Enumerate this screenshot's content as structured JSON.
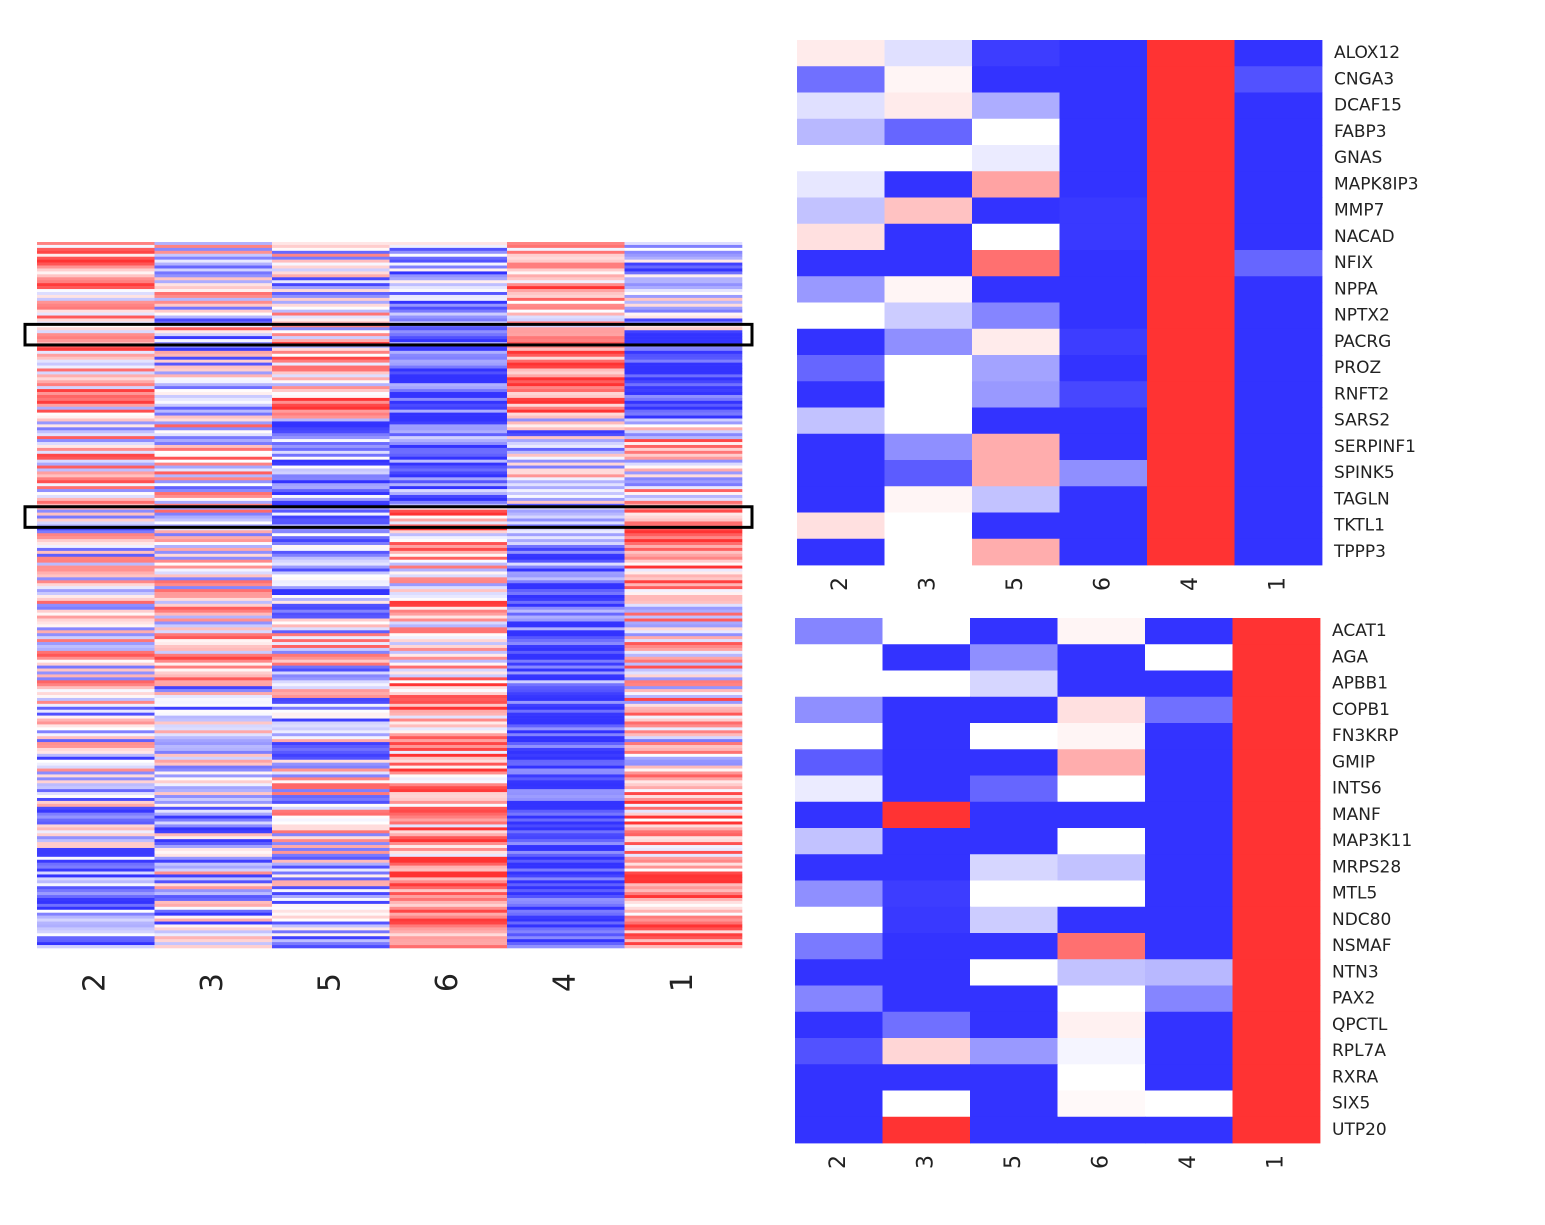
{
  "palette": {
    "high": "#ff3333",
    "low": "#3333ff",
    "mid": "#ffffff",
    "box": "#000000"
  },
  "chart_data": [
    {
      "id": "overview",
      "type": "heatmap",
      "title": "",
      "columns": [
        "2",
        "3",
        "5",
        "6",
        "4",
        "1"
      ],
      "value_range": [
        -1,
        1
      ],
      "row_count": 240,
      "highlight_rows": [
        [
          28,
          35
        ],
        [
          90,
          97
        ]
      ],
      "blocks": [
        {
          "rows": [
            0,
            30
          ],
          "means": [
            0.4,
            -0.05,
            -0.1,
            -0.5,
            0.35,
            -0.4
          ]
        },
        {
          "rows": [
            30,
            60
          ],
          "means": [
            0.2,
            -0.25,
            0.3,
            -0.85,
            0.7,
            -0.95
          ]
        },
        {
          "rows": [
            60,
            90
          ],
          "means": [
            0.15,
            0.05,
            -0.55,
            -0.7,
            -0.2,
            0.15
          ]
        },
        {
          "rows": [
            90,
            120
          ],
          "means": [
            -0.1,
            0.15,
            -0.55,
            0.25,
            -0.65,
            0.4
          ]
        },
        {
          "rows": [
            120,
            150
          ],
          "means": [
            0.1,
            0.2,
            -0.05,
            0.35,
            -0.75,
            0.2
          ]
        },
        {
          "rows": [
            150,
            180
          ],
          "means": [
            -0.15,
            -0.25,
            -0.2,
            0.45,
            -0.9,
            0.15
          ]
        },
        {
          "rows": [
            180,
            210
          ],
          "means": [
            -0.25,
            -0.3,
            -0.05,
            0.5,
            -0.9,
            0.5
          ]
        },
        {
          "rows": [
            210,
            240
          ],
          "means": [
            -0.6,
            -0.2,
            -0.3,
            0.7,
            -0.95,
            0.55
          ]
        }
      ]
    },
    {
      "id": "upper-panel",
      "type": "heatmap",
      "columns": [
        "2",
        "3",
        "5",
        "6",
        "4",
        "1"
      ],
      "value_range": [
        -1,
        1
      ],
      "rows": [
        "ALOX12",
        "CNGA3",
        "DCAF15",
        "FABP3",
        "GNAS",
        "MAPK8IP3",
        "MMP7",
        "NACAD",
        "NFIX",
        "NPPA",
        "NPTX2",
        "PACRG",
        "PROZ",
        "RNFT2",
        "SARS2",
        "SERPINF1",
        "SPINK5",
        "TAGLN",
        "TKTL1",
        "TPPP3"
      ],
      "values": [
        [
          0.1,
          -0.15,
          -0.95,
          -1,
          1,
          -1
        ],
        [
          -0.7,
          0.05,
          -1,
          -1,
          1,
          -0.85
        ],
        [
          -0.15,
          0.1,
          -0.4,
          -1,
          1,
          -1
        ],
        [
          -0.35,
          -0.75,
          0,
          -1,
          1,
          -1
        ],
        [
          0,
          0,
          -0.1,
          -1,
          1,
          -1
        ],
        [
          -0.12,
          -1,
          0.45,
          -1,
          1,
          -1
        ],
        [
          -0.3,
          0.3,
          -1,
          -0.97,
          1,
          -1
        ],
        [
          0.15,
          -1,
          0,
          -0.97,
          1,
          -1
        ],
        [
          -1,
          -1,
          0.7,
          -1,
          1,
          -0.75
        ],
        [
          -0.5,
          0.05,
          -1,
          -1,
          1,
          -1
        ],
        [
          0,
          -0.25,
          -0.6,
          -1,
          1,
          -1
        ],
        [
          -1,
          -0.55,
          0.1,
          -0.95,
          1,
          -1
        ],
        [
          -0.75,
          0,
          -0.45,
          -1,
          1,
          -1
        ],
        [
          -1,
          0,
          -0.5,
          -0.9,
          1,
          -1
        ],
        [
          -0.3,
          0,
          -1,
          -1,
          1,
          -1
        ],
        [
          -1,
          -0.55,
          0.4,
          -1,
          1,
          -1
        ],
        [
          -1,
          -0.8,
          0.4,
          -0.55,
          1,
          -1
        ],
        [
          -1,
          0.05,
          -0.3,
          -1,
          1,
          -1
        ],
        [
          0.15,
          0,
          -1,
          -1,
          1,
          -1
        ],
        [
          -1,
          0,
          0.4,
          -1,
          1,
          -1
        ]
      ]
    },
    {
      "id": "lower-panel",
      "type": "heatmap",
      "columns": [
        "2",
        "3",
        "5",
        "6",
        "4",
        "1"
      ],
      "value_range": [
        -1,
        1
      ],
      "rows": [
        "ACAT1",
        "AGA",
        "APBB1",
        "COPB1",
        "FN3KRP",
        "GMIP",
        "INTS6",
        "MANF",
        "MAP3K11",
        "MRPS28",
        "MTL5",
        "NDC80",
        "NSMAF",
        "NTN3",
        "PAX2",
        "QPCTL",
        "RPL7A",
        "RXRA",
        "SIX5",
        "UTP20"
      ],
      "values": [
        [
          -0.6,
          0,
          -1,
          0.05,
          -1,
          1
        ],
        [
          0,
          -1,
          -0.55,
          -1,
          0,
          1
        ],
        [
          0,
          0,
          -0.2,
          -1,
          -1,
          1
        ],
        [
          -0.55,
          -1,
          -1,
          0.15,
          -0.7,
          1
        ],
        [
          0,
          -1,
          0,
          0.05,
          -1,
          1
        ],
        [
          -0.8,
          -1,
          -1,
          0.4,
          -1,
          1
        ],
        [
          -0.1,
          -1,
          -0.75,
          0,
          -1,
          1
        ],
        [
          -1,
          1,
          -1,
          -1,
          -1,
          1
        ],
        [
          -0.3,
          -1,
          -1,
          0,
          -1,
          1
        ],
        [
          -1,
          -1,
          -0.2,
          -0.3,
          -1,
          1
        ],
        [
          -0.55,
          -0.95,
          0,
          0,
          -1,
          1
        ],
        [
          0,
          -0.97,
          -0.25,
          -1,
          -1,
          1
        ],
        [
          -0.65,
          -1,
          -1,
          0.7,
          -1,
          1
        ],
        [
          -1,
          -1,
          0,
          -0.3,
          -0.35,
          1
        ],
        [
          -0.6,
          -1,
          -1,
          0,
          -0.6,
          1
        ],
        [
          -1,
          -0.7,
          -1,
          0.07,
          -1,
          1
        ],
        [
          -0.85,
          0.2,
          -0.5,
          -0.05,
          -1,
          1
        ],
        [
          -1,
          -1,
          -1,
          0,
          -1,
          1
        ],
        [
          -1,
          0,
          -1,
          0.03,
          0,
          1
        ],
        [
          -1,
          1,
          -1,
          -1,
          -1,
          1
        ]
      ]
    }
  ]
}
